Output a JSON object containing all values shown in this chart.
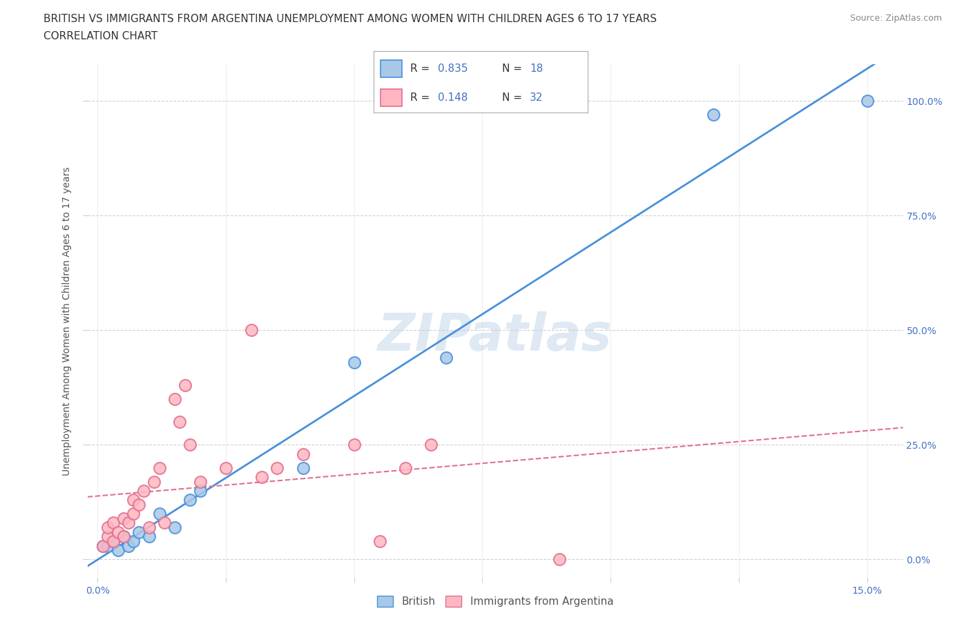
{
  "title": "BRITISH VS IMMIGRANTS FROM ARGENTINA UNEMPLOYMENT AMONG WOMEN WITH CHILDREN AGES 6 TO 17 YEARS",
  "subtitle": "CORRELATION CHART",
  "source": "Source: ZipAtlas.com",
  "ylabel_label": "Unemployment Among Women with Children Ages 6 to 17 years",
  "watermark": "ZIPatlas",
  "british_color": "#a8c8e8",
  "argentina_color": "#ffb6c1",
  "british_line_color": "#4a90d9",
  "argentina_line_color": "#e07090",
  "british_R": 0.835,
  "british_N": 18,
  "argentina_R": 0.148,
  "argentina_N": 32,
  "xlim": [
    -0.002,
    0.157
  ],
  "ylim": [
    -0.04,
    1.08
  ],
  "british_x": [
    0.001,
    0.002,
    0.003,
    0.004,
    0.005,
    0.006,
    0.007,
    0.008,
    0.01,
    0.012,
    0.015,
    0.018,
    0.02,
    0.04,
    0.05,
    0.068,
    0.12,
    0.15
  ],
  "british_y": [
    0.03,
    0.03,
    0.04,
    0.02,
    0.05,
    0.03,
    0.04,
    0.06,
    0.05,
    0.1,
    0.07,
    0.13,
    0.15,
    0.2,
    0.43,
    0.44,
    0.97,
    1.0
  ],
  "argentina_x": [
    0.001,
    0.002,
    0.002,
    0.003,
    0.003,
    0.004,
    0.005,
    0.005,
    0.006,
    0.007,
    0.007,
    0.008,
    0.009,
    0.01,
    0.011,
    0.012,
    0.013,
    0.015,
    0.016,
    0.017,
    0.018,
    0.02,
    0.025,
    0.03,
    0.032,
    0.035,
    0.04,
    0.05,
    0.055,
    0.06,
    0.065,
    0.09
  ],
  "argentina_y": [
    0.03,
    0.05,
    0.07,
    0.04,
    0.08,
    0.06,
    0.05,
    0.09,
    0.08,
    0.1,
    0.13,
    0.12,
    0.15,
    0.07,
    0.17,
    0.2,
    0.08,
    0.35,
    0.3,
    0.38,
    0.25,
    0.17,
    0.2,
    0.5,
    0.18,
    0.2,
    0.23,
    0.25,
    0.04,
    0.2,
    0.25,
    0.0
  ],
  "grid_color": "#cccccc",
  "background_color": "#ffffff",
  "title_fontsize": 11,
  "subtitle_fontsize": 11,
  "axis_label_fontsize": 10,
  "tick_fontsize": 10,
  "legend_fontsize": 12
}
